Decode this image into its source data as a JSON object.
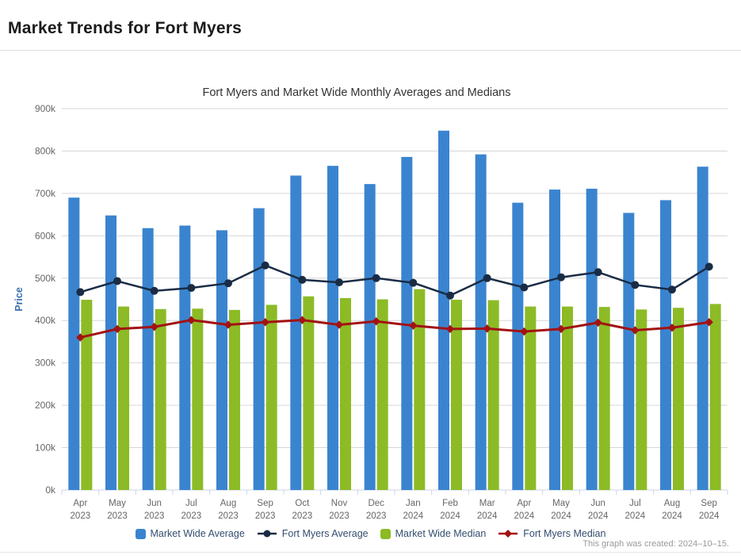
{
  "page": {
    "title": "Market Trends for Fort Myers",
    "footer_note": "This graph was created: 2024–10–15."
  },
  "colors": {
    "grid": "#d6d6d6",
    "axis_line": "#ccd6eb",
    "tick_label": "#666666",
    "ylabel_text": "#3a6fae",
    "legend_text": "#334d6e"
  },
  "chart_data": {
    "type": "bar",
    "title": "Fort Myers and Market Wide Monthly Averages and Medians",
    "xlabel": "",
    "ylabel": "Price",
    "units": "USD thousands (k)",
    "ylim": [
      0,
      900
    ],
    "ytick_step": 100,
    "ytick_suffix": "k",
    "grid": true,
    "legend_position": "bottom",
    "categories": [
      "Apr 2023",
      "May 2023",
      "Jun 2023",
      "Jul 2023",
      "Aug 2023",
      "Sep 2023",
      "Oct 2023",
      "Nov 2023",
      "Dec 2023",
      "Jan 2024",
      "Feb 2024",
      "Mar 2024",
      "Apr 2024",
      "May 2024",
      "Jun 2024",
      "Jul 2024",
      "Aug 2024",
      "Sep 2024"
    ],
    "series": [
      {
        "name": "Market Wide Average",
        "kind": "bar",
        "marker": "square",
        "color": "#3a84cf",
        "values": [
          690,
          648,
          618,
          624,
          613,
          665,
          742,
          765,
          722,
          786,
          848,
          792,
          678,
          709,
          711,
          654,
          684,
          763
        ]
      },
      {
        "name": "Fort Myers Average",
        "kind": "line",
        "marker": "circle",
        "color": "#1a2c45",
        "values": [
          467,
          493,
          470,
          477,
          488,
          530,
          496,
          490,
          500,
          489,
          459,
          500,
          478,
          502,
          514,
          484,
          473,
          527
        ]
      },
      {
        "name": "Market Wide Median",
        "kind": "bar",
        "marker": "square",
        "color": "#8cbb26",
        "values": [
          449,
          433,
          427,
          428,
          425,
          437,
          457,
          453,
          450,
          474,
          449,
          448,
          433,
          433,
          432,
          426,
          430,
          439
        ]
      },
      {
        "name": "Fort Myers Median",
        "kind": "line",
        "marker": "diamond",
        "color": "#a31212",
        "values": [
          360,
          380,
          385,
          401,
          390,
          396,
          401,
          390,
          398,
          388,
          380,
          381,
          374,
          380,
          395,
          377,
          383,
          396
        ]
      }
    ]
  }
}
